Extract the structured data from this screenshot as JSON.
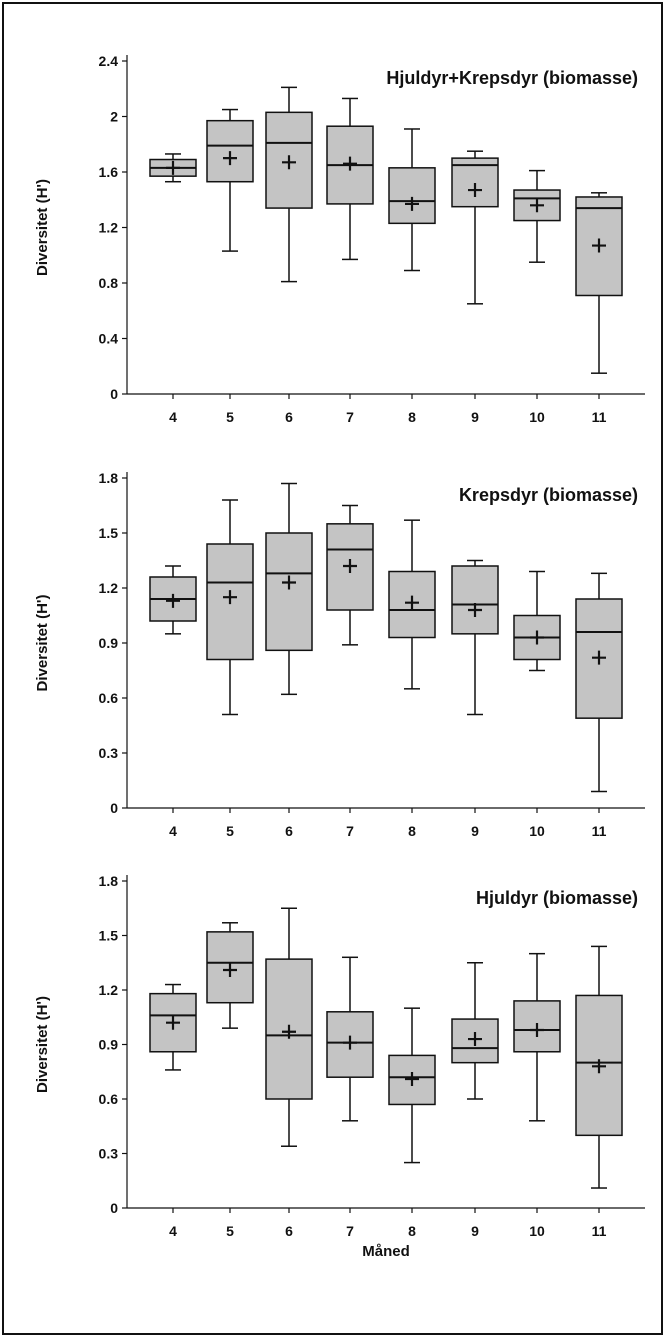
{
  "colors": {
    "box_fill": "#c4c4c4",
    "ink": "#111111",
    "background": "#ffffff"
  },
  "chart_data": [
    {
      "type": "boxplot",
      "title": "Hjuldyr+Krepsdyr (biomasse)",
      "xlabel": "",
      "ylabel": "Diversitet (H')",
      "ylim": [
        0,
        2.4
      ],
      "yticks": [
        "0",
        "0.4",
        "0.8",
        "1.2",
        "1.6",
        "2",
        "2.4"
      ],
      "categories": [
        "4",
        "5",
        "6",
        "7",
        "8",
        "9",
        "10",
        "11"
      ],
      "boxes": [
        {
          "min": 1.53,
          "q1": 1.57,
          "median": 1.63,
          "q3": 1.69,
          "max": 1.73,
          "mean": 1.63
        },
        {
          "min": 1.03,
          "q1": 1.53,
          "median": 1.79,
          "q3": 1.97,
          "max": 2.05,
          "mean": 1.7
        },
        {
          "min": 0.81,
          "q1": 1.34,
          "median": 1.81,
          "q3": 2.03,
          "max": 2.21,
          "mean": 1.67
        },
        {
          "min": 0.97,
          "q1": 1.37,
          "median": 1.65,
          "q3": 1.93,
          "max": 2.13,
          "mean": 1.66
        },
        {
          "min": 0.89,
          "q1": 1.23,
          "median": 1.39,
          "q3": 1.63,
          "max": 1.91,
          "mean": 1.37
        },
        {
          "min": 0.65,
          "q1": 1.35,
          "median": 1.65,
          "q3": 1.7,
          "max": 1.75,
          "mean": 1.47
        },
        {
          "min": 0.95,
          "q1": 1.25,
          "median": 1.41,
          "q3": 1.47,
          "max": 1.61,
          "mean": 1.36
        },
        {
          "min": 0.15,
          "q1": 0.71,
          "median": 1.34,
          "q3": 1.42,
          "max": 1.45,
          "mean": 1.07
        }
      ]
    },
    {
      "type": "boxplot",
      "title": "Krepsdyr (biomasse)",
      "xlabel": "",
      "ylabel": "Diversitet (H')",
      "ylim": [
        0,
        1.8
      ],
      "yticks": [
        "0",
        "0.3",
        "0.6",
        "0.9",
        "1.2",
        "1.5",
        "1.8"
      ],
      "categories": [
        "4",
        "5",
        "6",
        "7",
        "8",
        "9",
        "10",
        "11"
      ],
      "boxes": [
        {
          "min": 0.95,
          "q1": 1.02,
          "median": 1.14,
          "q3": 1.26,
          "max": 1.32,
          "mean": 1.13
        },
        {
          "min": 0.51,
          "q1": 0.81,
          "median": 1.23,
          "q3": 1.44,
          "max": 1.68,
          "mean": 1.15
        },
        {
          "min": 0.62,
          "q1": 0.86,
          "median": 1.28,
          "q3": 1.5,
          "max": 1.77,
          "mean": 1.23
        },
        {
          "min": 0.89,
          "q1": 1.08,
          "median": 1.41,
          "q3": 1.55,
          "max": 1.65,
          "mean": 1.32
        },
        {
          "min": 0.65,
          "q1": 0.93,
          "median": 1.08,
          "q3": 1.29,
          "max": 1.57,
          "mean": 1.12
        },
        {
          "min": 0.51,
          "q1": 0.95,
          "median": 1.11,
          "q3": 1.32,
          "max": 1.35,
          "mean": 1.08
        },
        {
          "min": 0.75,
          "q1": 0.81,
          "median": 0.93,
          "q3": 1.05,
          "max": 1.29,
          "mean": 0.93
        },
        {
          "min": 0.09,
          "q1": 0.49,
          "median": 0.96,
          "q3": 1.14,
          "max": 1.28,
          "mean": 0.82
        }
      ]
    },
    {
      "type": "boxplot",
      "title": "Hjuldyr (biomasse)",
      "xlabel": "Måned",
      "ylabel": "Diversitet (H')",
      "ylim": [
        0,
        1.8
      ],
      "yticks": [
        "0",
        "0.3",
        "0.6",
        "0.9",
        "1.2",
        "1.5",
        "1.8"
      ],
      "categories": [
        "4",
        "5",
        "6",
        "7",
        "8",
        "9",
        "10",
        "11"
      ],
      "boxes": [
        {
          "min": 0.76,
          "q1": 0.86,
          "median": 1.06,
          "q3": 1.18,
          "max": 1.23,
          "mean": 1.02
        },
        {
          "min": 0.99,
          "q1": 1.13,
          "median": 1.35,
          "q3": 1.52,
          "max": 1.57,
          "mean": 1.31
        },
        {
          "min": 0.34,
          "q1": 0.6,
          "median": 0.95,
          "q3": 1.37,
          "max": 1.65,
          "mean": 0.97
        },
        {
          "min": 0.48,
          "q1": 0.72,
          "median": 0.91,
          "q3": 1.08,
          "max": 1.38,
          "mean": 0.91
        },
        {
          "min": 0.25,
          "q1": 0.57,
          "median": 0.72,
          "q3": 0.84,
          "max": 1.1,
          "mean": 0.71
        },
        {
          "min": 0.6,
          "q1": 0.8,
          "median": 0.88,
          "q3": 1.04,
          "max": 1.35,
          "mean": 0.93
        },
        {
          "min": 0.48,
          "q1": 0.86,
          "median": 0.98,
          "q3": 1.14,
          "max": 1.4,
          "mean": 0.98
        },
        {
          "min": 0.11,
          "q1": 0.4,
          "median": 0.8,
          "q3": 1.17,
          "max": 1.44,
          "mean": 0.78
        }
      ]
    }
  ]
}
